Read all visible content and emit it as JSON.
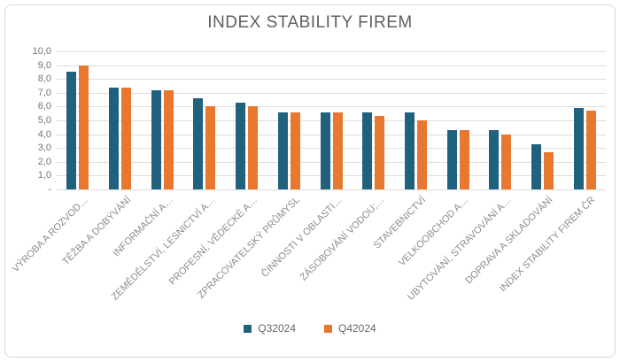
{
  "chart_data": {
    "type": "bar",
    "title": "INDEX STABILITY FIREM",
    "xlabel": "",
    "ylabel": "",
    "ylim": [
      0,
      10
    ],
    "ytick_step": 1.0,
    "grid": true,
    "legend_position": "bottom",
    "decimal_format": "czech-comma",
    "ytick_labels": [
      "10,0",
      "9,0",
      "8,0",
      "7,0",
      "6,0",
      "5,0",
      "4,0",
      "3,0",
      "2,0",
      "1,0",
      "-"
    ],
    "categories": [
      "VÝROBA A ROZVOD…",
      "TĚŽBA A DOBÝVÁNÍ",
      "INFORMAČNÍ A…",
      "ZEMĚDĚLSTVÍ, LESNICTVÍ A…",
      "PROFESNÍ, VĚDECKÉ A…",
      "ZPRACOVATELSKÝ PRŮMYSL",
      "ČINNOSTI V OBLASTI…",
      "ZÁSOBOVÁNÍ VODOU;…",
      "STAVEBNICTVÍ",
      "VELKOOBCHOD A…",
      "UBYTOVÁNÍ, STRAVOVÁNÍ A…",
      "DOPRAVA A SKLADOVÁNÍ",
      "INDEX STABILITY FIREM ČR"
    ],
    "series": [
      {
        "name": "Q32024",
        "color": "#20617E",
        "values": [
          8.5,
          7.4,
          7.2,
          6.6,
          6.3,
          5.6,
          5.6,
          5.6,
          5.6,
          4.3,
          4.3,
          3.3,
          5.9
        ]
      },
      {
        "name": "Q42024",
        "color": "#E8782F",
        "values": [
          9.0,
          7.4,
          7.2,
          6.0,
          6.0,
          5.6,
          5.6,
          5.3,
          5.0,
          4.3,
          4.0,
          2.7,
          5.7
        ]
      }
    ],
    "colors": {
      "title_text": "#5f5f5f",
      "axis_text": "#757575",
      "category_text": "#8c8c8c",
      "gridline": "#dddddd",
      "card_border": "#d6d6d6",
      "background": "#ffffff"
    }
  }
}
